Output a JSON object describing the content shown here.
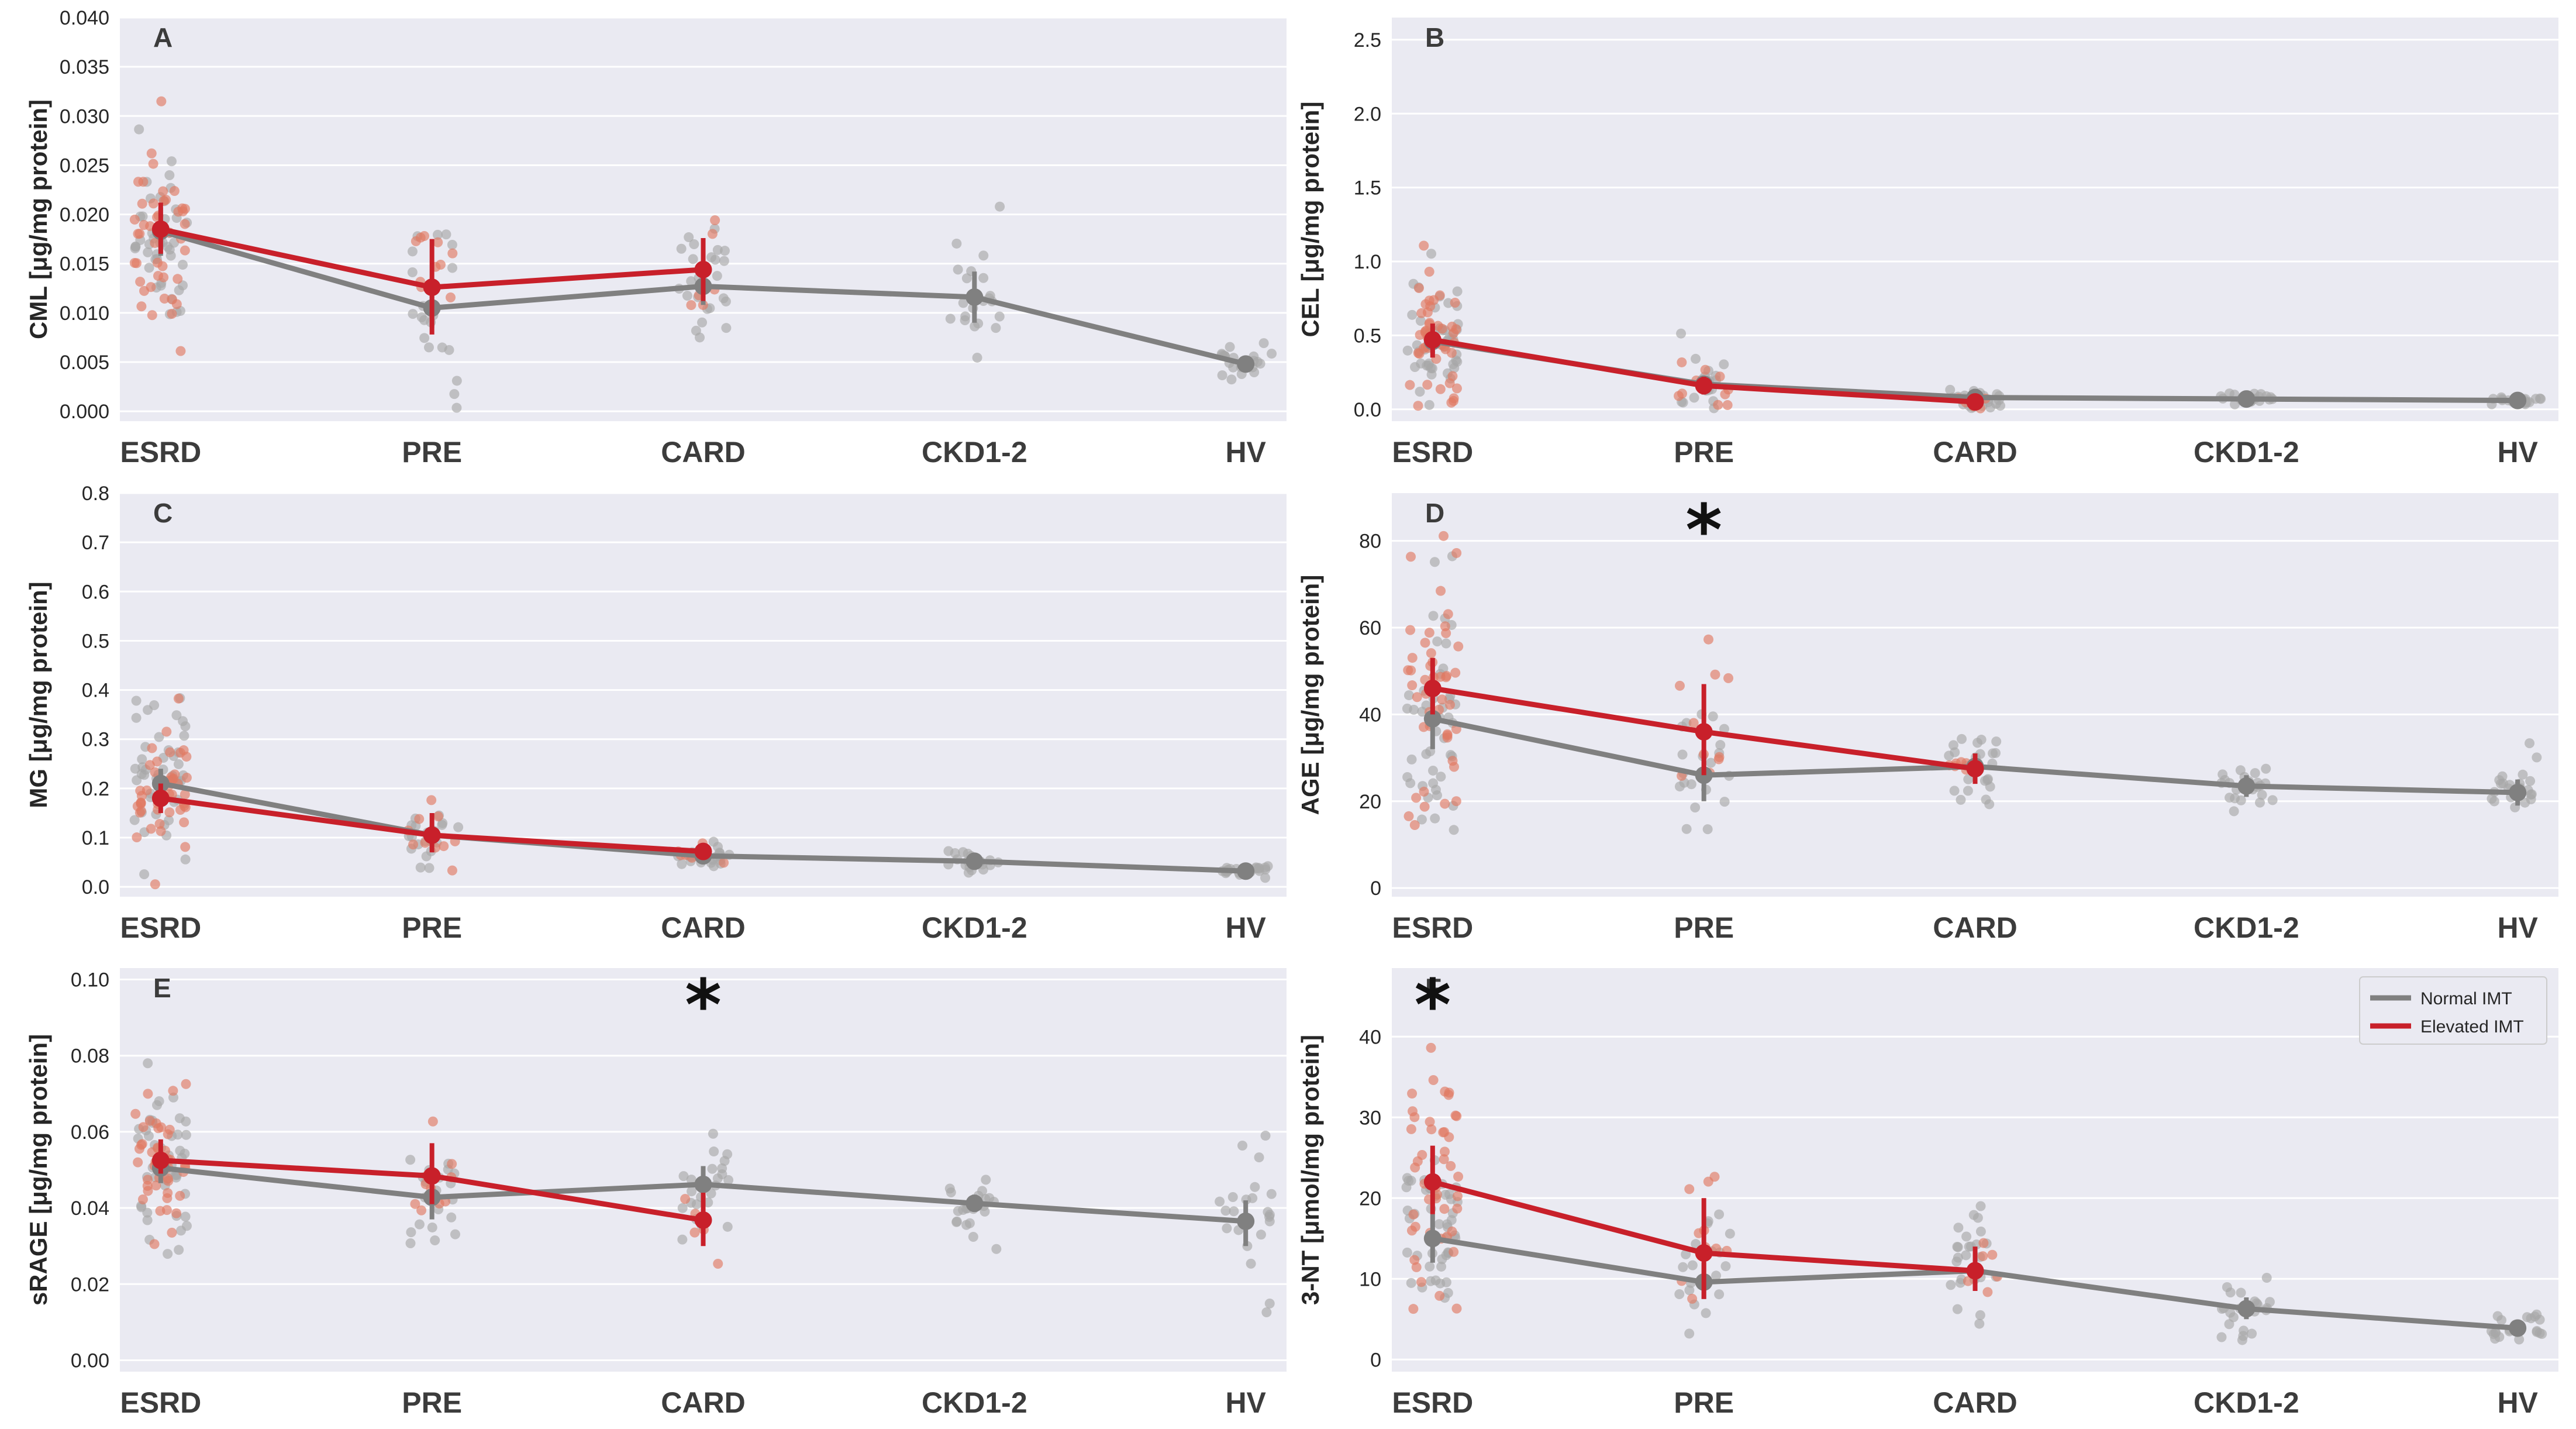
{
  "legend": {
    "items": [
      {
        "label": "Normal IMT",
        "color": "#808080"
      },
      {
        "label": "Elevated IMT",
        "color": "#c8202a"
      }
    ]
  },
  "colors": {
    "panel_bg": "#eaeaf2",
    "grid": "#ffffff",
    "normal_line": "#808080",
    "elevated_line": "#c8202a",
    "normal_point": "#a8a8a8",
    "elevated_point": "#e07a63"
  },
  "chart_data": [
    {
      "type": "scatter",
      "panel": "A",
      "ylabel": "CML [μg/mg protein]",
      "categories": [
        "ESRD",
        "PRE",
        "CARD",
        "CKD1-2",
        "HV"
      ],
      "ylim": [
        -0.001,
        0.04
      ],
      "yticks": [
        0.0,
        0.005,
        0.01,
        0.015,
        0.02,
        0.025,
        0.03,
        0.035,
        0.04
      ],
      "ytick_labels": [
        "0.000",
        "0.005",
        "0.010",
        "0.015",
        "0.020",
        "0.025",
        "0.030",
        "0.035",
        "0.040"
      ],
      "significant": [],
      "series": [
        {
          "name": "Normal IMT",
          "mean": [
            0.0183,
            0.0105,
            0.0127,
            0.0116,
            0.0048
          ],
          "ci_low": [
            0.0158,
            0.0085,
            0.0108,
            0.009,
            0.004
          ],
          "ci_high": [
            0.0207,
            0.0125,
            0.0146,
            0.0142,
            0.0056
          ],
          "spread": [
            0.0085,
            0.0085,
            0.0065,
            0.0058,
            0.0015
          ],
          "n": [
            45,
            20,
            25,
            22,
            22
          ]
        },
        {
          "name": "Elevated IMT",
          "mean": [
            0.0185,
            0.0126,
            0.0144,
            null,
            null
          ],
          "ci_low": [
            0.016,
            0.0078,
            0.0112,
            null,
            null
          ],
          "ci_high": [
            0.0212,
            0.0175,
            0.0176,
            null,
            null
          ],
          "spread": [
            0.0085,
            0.0075,
            0.0055,
            0,
            0
          ],
          "n": [
            45,
            10,
            6,
            0,
            0
          ]
        }
      ]
    },
    {
      "type": "scatter",
      "panel": "B",
      "ylabel": "CEL [μg/mg protein]",
      "categories": [
        "ESRD",
        "PRE",
        "CARD",
        "CKD1-2",
        "HV"
      ],
      "ylim": [
        -0.08,
        2.65
      ],
      "yticks": [
        0.0,
        0.5,
        1.0,
        1.5,
        2.0,
        2.5
      ],
      "ytick_labels": [
        "0.0",
        "0.5",
        "1.0",
        "1.5",
        "2.0",
        "2.5"
      ],
      "significant": [],
      "series": [
        {
          "name": "Normal IMT",
          "mean": [
            0.46,
            0.17,
            0.08,
            0.07,
            0.06
          ],
          "ci_low": [
            0.38,
            0.12,
            0.06,
            0.05,
            0.05
          ],
          "ci_high": [
            0.56,
            0.22,
            0.1,
            0.09,
            0.07
          ],
          "spread": [
            0.33,
            0.15,
            0.06,
            0.03,
            0.02
          ],
          "n": [
            45,
            20,
            25,
            22,
            22
          ]
        },
        {
          "name": "Elevated IMT",
          "mean": [
            0.47,
            0.16,
            0.05,
            null,
            null
          ],
          "ci_low": [
            0.35,
            0.1,
            0.03,
            null,
            null
          ],
          "ci_high": [
            0.58,
            0.22,
            0.07,
            null,
            null
          ],
          "spread": [
            0.33,
            0.12,
            0.03,
            0,
            0
          ],
          "n": [
            45,
            10,
            6,
            0,
            0
          ]
        }
      ]
    },
    {
      "type": "scatter",
      "panel": "C",
      "ylabel": "MG [μg/mg protein]",
      "categories": [
        "ESRD",
        "PRE",
        "CARD",
        "CKD1-2",
        "HV"
      ],
      "ylim": [
        -0.02,
        0.8
      ],
      "yticks": [
        0.0,
        0.1,
        0.2,
        0.3,
        0.4,
        0.5,
        0.6,
        0.7,
        0.8
      ],
      "ytick_labels": [
        "0.0",
        "0.1",
        "0.2",
        "0.3",
        "0.4",
        "0.5",
        "0.6",
        "0.7",
        "0.8"
      ],
      "significant": [],
      "series": [
        {
          "name": "Normal IMT",
          "mean": [
            0.21,
            0.105,
            0.063,
            0.052,
            0.032
          ],
          "ci_low": [
            0.18,
            0.085,
            0.055,
            0.043,
            0.028
          ],
          "ci_high": [
            0.24,
            0.125,
            0.071,
            0.061,
            0.036
          ],
          "spread": [
            0.12,
            0.06,
            0.025,
            0.025,
            0.008
          ],
          "n": [
            45,
            20,
            25,
            22,
            22
          ]
        },
        {
          "name": "Elevated IMT",
          "mean": [
            0.18,
            0.105,
            0.072,
            null,
            null
          ],
          "ci_low": [
            0.15,
            0.07,
            0.06,
            null,
            null
          ],
          "ci_high": [
            0.21,
            0.15,
            0.085,
            null,
            null
          ],
          "spread": [
            0.11,
            0.05,
            0.02,
            0,
            0
          ],
          "n": [
            45,
            10,
            6,
            0,
            0
          ]
        }
      ]
    },
    {
      "type": "scatter",
      "panel": "D",
      "ylabel": "AGE [μg/mg protein]",
      "categories": [
        "ESRD",
        "PRE",
        "CARD",
        "CKD1-2",
        "HV"
      ],
      "ylim": [
        -2,
        91
      ],
      "yticks": [
        0,
        20,
        40,
        60,
        80
      ],
      "ytick_labels": [
        "0",
        "20",
        "40",
        "60",
        "80"
      ],
      "significant": [
        "PRE"
      ],
      "series": [
        {
          "name": "Normal IMT",
          "mean": [
            39,
            26,
            28,
            23.5,
            22
          ],
          "ci_low": [
            32,
            20,
            25,
            21,
            19
          ],
          "ci_high": [
            46,
            32,
            31,
            26,
            25
          ],
          "spread": [
            25,
            14,
            7,
            4,
            6
          ],
          "n": [
            45,
            20,
            25,
            22,
            22
          ]
        },
        {
          "name": "Elevated IMT",
          "mean": [
            46,
            36,
            27.5,
            null,
            null
          ],
          "ci_low": [
            40,
            26,
            24,
            null,
            null
          ],
          "ci_high": [
            53,
            47,
            31,
            null,
            null
          ],
          "spread": [
            25,
            16,
            5,
            0,
            0
          ],
          "n": [
            45,
            10,
            6,
            0,
            0
          ]
        }
      ]
    },
    {
      "type": "scatter",
      "panel": "E",
      "ylabel": "sRAGE [μg/mg protein]",
      "categories": [
        "ESRD",
        "PRE",
        "CARD",
        "CKD1-2",
        "HV"
      ],
      "ylim": [
        -0.003,
        0.103
      ],
      "yticks": [
        0.0,
        0.02,
        0.04,
        0.06,
        0.08,
        0.1
      ],
      "ytick_labels": [
        "0.00",
        "0.02",
        "0.04",
        "0.06",
        "0.08",
        "0.10"
      ],
      "significant": [
        "CARD"
      ],
      "series": [
        {
          "name": "Normal IMT",
          "mean": [
            0.0505,
            0.0428,
            0.0462,
            0.0412,
            0.0365
          ],
          "ci_low": [
            0.0465,
            0.037,
            0.041,
            0.039,
            0.03
          ],
          "ci_high": [
            0.0545,
            0.049,
            0.051,
            0.0435,
            0.042
          ],
          "spread": [
            0.018,
            0.016,
            0.014,
            0.007,
            0.02
          ],
          "n": [
            45,
            20,
            25,
            22,
            22
          ]
        },
        {
          "name": "Elevated IMT",
          "mean": [
            0.0525,
            0.0484,
            0.0368,
            null,
            null
          ],
          "ci_low": [
            0.049,
            0.041,
            0.03,
            null,
            null
          ],
          "ci_high": [
            0.058,
            0.057,
            0.044,
            null,
            null
          ],
          "spread": [
            0.014,
            0.013,
            0.01,
            0,
            0
          ],
          "n": [
            45,
            10,
            6,
            0,
            0
          ]
        }
      ]
    },
    {
      "type": "scatter",
      "panel": "F",
      "ylabel": "3-NT [μmol/mg protein]",
      "categories": [
        "ESRD",
        "PRE",
        "CARD",
        "CKD1-2",
        "HV"
      ],
      "ylim": [
        -1.5,
        48.5
      ],
      "yticks": [
        0,
        10,
        20,
        30,
        40
      ],
      "ytick_labels": [
        "0",
        "10",
        "20",
        "30",
        "40"
      ],
      "significant": [
        "ESRD"
      ],
      "series": [
        {
          "name": "Normal IMT",
          "mean": [
            15,
            9.6,
            11,
            6.3,
            3.9
          ],
          "ci_low": [
            12,
            7.5,
            9.5,
            5,
            3
          ],
          "ci_high": [
            18,
            12,
            12.5,
            7.7,
            4.8
          ],
          "spread": [
            9,
            8,
            6,
            4,
            2
          ],
          "n": [
            45,
            20,
            25,
            22,
            22
          ]
        },
        {
          "name": "Elevated IMT",
          "mean": [
            22,
            13.2,
            11,
            null,
            null
          ],
          "ci_low": [
            18,
            7.5,
            8.5,
            null,
            null
          ],
          "ci_high": [
            26.5,
            20,
            14,
            null,
            null
          ],
          "spread": [
            13,
            9,
            3,
            0,
            0
          ],
          "n": [
            45,
            10,
            6,
            0,
            0
          ]
        }
      ]
    }
  ]
}
